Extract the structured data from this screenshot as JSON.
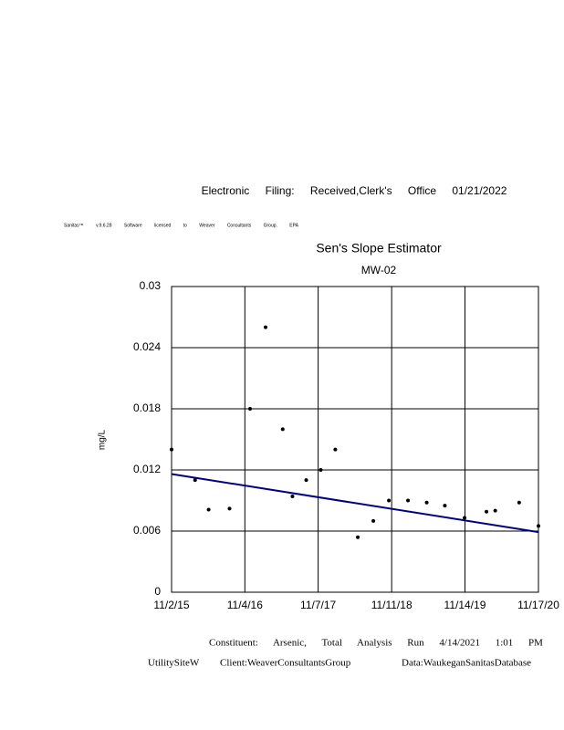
{
  "header": {
    "filing": "Electronic Filing: Received,Clerk's Office 01/21/2022",
    "license": "Sanitas™ v.9.6.28 Software licensed to Weaver Consultants Group. EPA"
  },
  "chart_data": {
    "type": "scatter",
    "title": "Sen's Slope Estimator",
    "subtitle": "MW-02",
    "y_label": "mg/L",
    "x": [
      "2015-11-02",
      "2016-02-28",
      "2016-05-06",
      "2016-08-19",
      "2016-11-30",
      "2017-02-16",
      "2017-05-13",
      "2017-07-01",
      "2017-09-08",
      "2017-11-20",
      "2018-02-01",
      "2018-05-25",
      "2018-08-11",
      "2018-10-28",
      "2019-02-01",
      "2019-05-06",
      "2019-08-05",
      "2019-11-12",
      "2020-03-01",
      "2020-04-14",
      "2020-08-12",
      "2020-11-17"
    ],
    "series": [
      {
        "name": "MW-02",
        "color": "#000000",
        "values": [
          0.014,
          0.011,
          0.0081,
          0.0082,
          0.018,
          0.026,
          0.016,
          0.0094,
          0.011,
          0.012,
          0.014,
          0.0054,
          0.007,
          0.009,
          0.009,
          0.0088,
          0.0085,
          0.0073,
          0.0079,
          0.008,
          0.0088,
          0.0065
        ]
      }
    ],
    "trend": {
      "x": [
        "2015-11-02",
        "2020-11-17"
      ],
      "values": [
        0.0116,
        0.0059
      ],
      "color": "#000080"
    },
    "xlim": [
      "2015-11-02",
      "2020-11-17"
    ],
    "xticks": [
      {
        "value": "2015-11-02",
        "label": "11/2/15"
      },
      {
        "value": "2016-11-04",
        "label": "11/4/16"
      },
      {
        "value": "2017-11-07",
        "label": "11/7/17"
      },
      {
        "value": "2018-11-11",
        "label": "11/11/18"
      },
      {
        "value": "2019-11-14",
        "label": "11/14/19"
      },
      {
        "value": "2020-11-17",
        "label": "11/17/20"
      }
    ],
    "ylim": [
      0,
      0.03
    ],
    "yticks": [
      0,
      0.006,
      0.012,
      0.018,
      0.024,
      0.03
    ],
    "grid": true
  },
  "footer": {
    "run": "Constituent: Arsenic, Total Analysis Run 4/14/2021 1:01 PM",
    "site": [
      "UtilitySiteW",
      "Client:WeaverConsultantsGroup",
      "Data:WaukeganSanitasDatabase"
    ]
  }
}
